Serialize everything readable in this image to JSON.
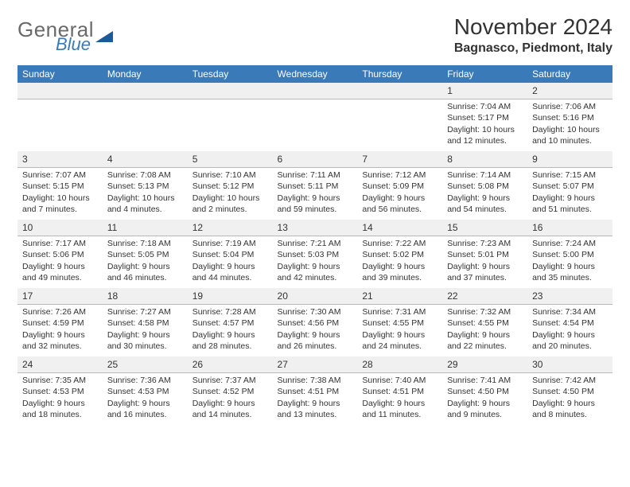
{
  "logo": {
    "text1": "General",
    "text2": "Blue"
  },
  "header": {
    "month_title": "November 2024",
    "location": "Bagnasco, Piedmont, Italy"
  },
  "colors": {
    "header_bg": "#3a7ab8",
    "header_text": "#ffffff",
    "day_bar_bg": "#f0f0f0",
    "day_bar_border": "#b8b8b8",
    "body_text": "#333333",
    "logo_gray": "#6a6a6a",
    "logo_blue": "#3a7ab8",
    "triangle": "#1d5a9a"
  },
  "day_headers": [
    "Sunday",
    "Monday",
    "Tuesday",
    "Wednesday",
    "Thursday",
    "Friday",
    "Saturday"
  ],
  "weeks": [
    [
      null,
      null,
      null,
      null,
      null,
      {
        "n": "1",
        "sr": "7:04 AM",
        "ss": "5:17 PM",
        "dl": "10 hours and 12 minutes."
      },
      {
        "n": "2",
        "sr": "7:06 AM",
        "ss": "5:16 PM",
        "dl": "10 hours and 10 minutes."
      }
    ],
    [
      {
        "n": "3",
        "sr": "7:07 AM",
        "ss": "5:15 PM",
        "dl": "10 hours and 7 minutes."
      },
      {
        "n": "4",
        "sr": "7:08 AM",
        "ss": "5:13 PM",
        "dl": "10 hours and 4 minutes."
      },
      {
        "n": "5",
        "sr": "7:10 AM",
        "ss": "5:12 PM",
        "dl": "10 hours and 2 minutes."
      },
      {
        "n": "6",
        "sr": "7:11 AM",
        "ss": "5:11 PM",
        "dl": "9 hours and 59 minutes."
      },
      {
        "n": "7",
        "sr": "7:12 AM",
        "ss": "5:09 PM",
        "dl": "9 hours and 56 minutes."
      },
      {
        "n": "8",
        "sr": "7:14 AM",
        "ss": "5:08 PM",
        "dl": "9 hours and 54 minutes."
      },
      {
        "n": "9",
        "sr": "7:15 AM",
        "ss": "5:07 PM",
        "dl": "9 hours and 51 minutes."
      }
    ],
    [
      {
        "n": "10",
        "sr": "7:17 AM",
        "ss": "5:06 PM",
        "dl": "9 hours and 49 minutes."
      },
      {
        "n": "11",
        "sr": "7:18 AM",
        "ss": "5:05 PM",
        "dl": "9 hours and 46 minutes."
      },
      {
        "n": "12",
        "sr": "7:19 AM",
        "ss": "5:04 PM",
        "dl": "9 hours and 44 minutes."
      },
      {
        "n": "13",
        "sr": "7:21 AM",
        "ss": "5:03 PM",
        "dl": "9 hours and 42 minutes."
      },
      {
        "n": "14",
        "sr": "7:22 AM",
        "ss": "5:02 PM",
        "dl": "9 hours and 39 minutes."
      },
      {
        "n": "15",
        "sr": "7:23 AM",
        "ss": "5:01 PM",
        "dl": "9 hours and 37 minutes."
      },
      {
        "n": "16",
        "sr": "7:24 AM",
        "ss": "5:00 PM",
        "dl": "9 hours and 35 minutes."
      }
    ],
    [
      {
        "n": "17",
        "sr": "7:26 AM",
        "ss": "4:59 PM",
        "dl": "9 hours and 32 minutes."
      },
      {
        "n": "18",
        "sr": "7:27 AM",
        "ss": "4:58 PM",
        "dl": "9 hours and 30 minutes."
      },
      {
        "n": "19",
        "sr": "7:28 AM",
        "ss": "4:57 PM",
        "dl": "9 hours and 28 minutes."
      },
      {
        "n": "20",
        "sr": "7:30 AM",
        "ss": "4:56 PM",
        "dl": "9 hours and 26 minutes."
      },
      {
        "n": "21",
        "sr": "7:31 AM",
        "ss": "4:55 PM",
        "dl": "9 hours and 24 minutes."
      },
      {
        "n": "22",
        "sr": "7:32 AM",
        "ss": "4:55 PM",
        "dl": "9 hours and 22 minutes."
      },
      {
        "n": "23",
        "sr": "7:34 AM",
        "ss": "4:54 PM",
        "dl": "9 hours and 20 minutes."
      }
    ],
    [
      {
        "n": "24",
        "sr": "7:35 AM",
        "ss": "4:53 PM",
        "dl": "9 hours and 18 minutes."
      },
      {
        "n": "25",
        "sr": "7:36 AM",
        "ss": "4:53 PM",
        "dl": "9 hours and 16 minutes."
      },
      {
        "n": "26",
        "sr": "7:37 AM",
        "ss": "4:52 PM",
        "dl": "9 hours and 14 minutes."
      },
      {
        "n": "27",
        "sr": "7:38 AM",
        "ss": "4:51 PM",
        "dl": "9 hours and 13 minutes."
      },
      {
        "n": "28",
        "sr": "7:40 AM",
        "ss": "4:51 PM",
        "dl": "9 hours and 11 minutes."
      },
      {
        "n": "29",
        "sr": "7:41 AM",
        "ss": "4:50 PM",
        "dl": "9 hours and 9 minutes."
      },
      {
        "n": "30",
        "sr": "7:42 AM",
        "ss": "4:50 PM",
        "dl": "9 hours and 8 minutes."
      }
    ]
  ],
  "labels": {
    "sunrise": "Sunrise:",
    "sunset": "Sunset:",
    "daylight": "Daylight:"
  }
}
